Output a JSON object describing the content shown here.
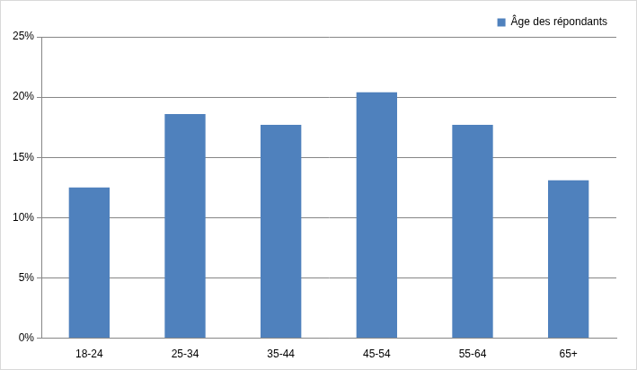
{
  "chart_data": {
    "type": "bar",
    "categories": [
      "18-24",
      "25-34",
      "35-44",
      "45-54",
      "55-64",
      "65+"
    ],
    "series": [
      {
        "name": "Âge des répondants",
        "color": "#4f81bd",
        "values": [
          12.5,
          18.6,
          17.7,
          20.4,
          17.7,
          13.1
        ]
      }
    ],
    "ylim": [
      0,
      25
    ],
    "yticks": [
      {
        "value": 0,
        "label": "0%"
      },
      {
        "value": 5,
        "label": "5%"
      },
      {
        "value": 10,
        "label": "10%"
      },
      {
        "value": 15,
        "label": "15%"
      },
      {
        "value": 20,
        "label": "20%"
      },
      {
        "value": 25,
        "label": "25%"
      }
    ],
    "grid": true,
    "legend": "top-right"
  }
}
